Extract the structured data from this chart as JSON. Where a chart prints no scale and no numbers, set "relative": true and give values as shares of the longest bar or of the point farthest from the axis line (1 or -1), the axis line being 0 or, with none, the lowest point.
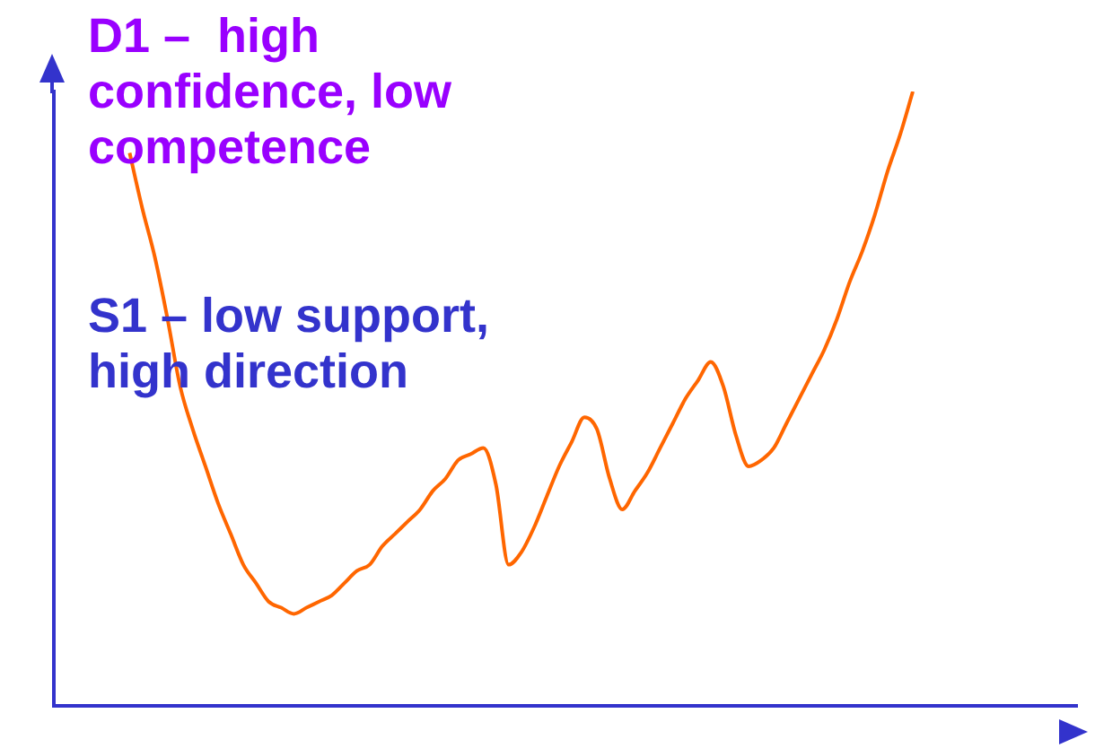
{
  "chart_data": {
    "type": "line",
    "relative": true,
    "marker": "none",
    "annotations": [
      "D1 –  high confidence, low competence",
      "S1 – low support, high direction"
    ],
    "categories": [
      null,
      null,
      null,
      null,
      null,
      null,
      null,
      null,
      null,
      null,
      null,
      null,
      null,
      null,
      null,
      null,
      null,
      null,
      null,
      null,
      null,
      null,
      null,
      null,
      null,
      null,
      null,
      null,
      null,
      null,
      null,
      null,
      null,
      null,
      null,
      null,
      null,
      null,
      null,
      null,
      null,
      null,
      null,
      null,
      null,
      null,
      null,
      null,
      null,
      null,
      null,
      null,
      null,
      null,
      null,
      null,
      null,
      null,
      null,
      null,
      null,
      null,
      null,
      null,
      null,
      null,
      null,
      null,
      null,
      null,
      null,
      null,
      null,
      null,
      null,
      null,
      null,
      null,
      null,
      null,
      null,
      null
    ],
    "series": [
      {
        "color": "#ff6600",
        "values": [
          null,
          null,
          null,
          null,
          null,
          null,
          0.9,
          0.81,
          0.73,
          0.63,
          0.52,
          0.45,
          0.39,
          0.33,
          0.28,
          0.23,
          0.2,
          0.17,
          0.16,
          0.15,
          0.16,
          0.17,
          0.18,
          0.2,
          0.22,
          0.23,
          0.26,
          0.28,
          0.3,
          0.32,
          0.35,
          0.37,
          0.4,
          0.41,
          0.42,
          0.36,
          0.23,
          0.25,
          0.29,
          0.34,
          0.39,
          0.43,
          0.47,
          0.45,
          0.37,
          0.32,
          0.35,
          0.38,
          0.42,
          0.46,
          0.5,
          0.53,
          0.56,
          0.52,
          0.44,
          0.39,
          0.4,
          0.42,
          0.46,
          0.5,
          0.54,
          0.58,
          0.63,
          0.69,
          0.74,
          0.8,
          0.87,
          0.93,
          1,
          null,
          null,
          null,
          null,
          null,
          null,
          null,
          null,
          null,
          null,
          null,
          null,
          null
        ]
      }
    ]
  }
}
